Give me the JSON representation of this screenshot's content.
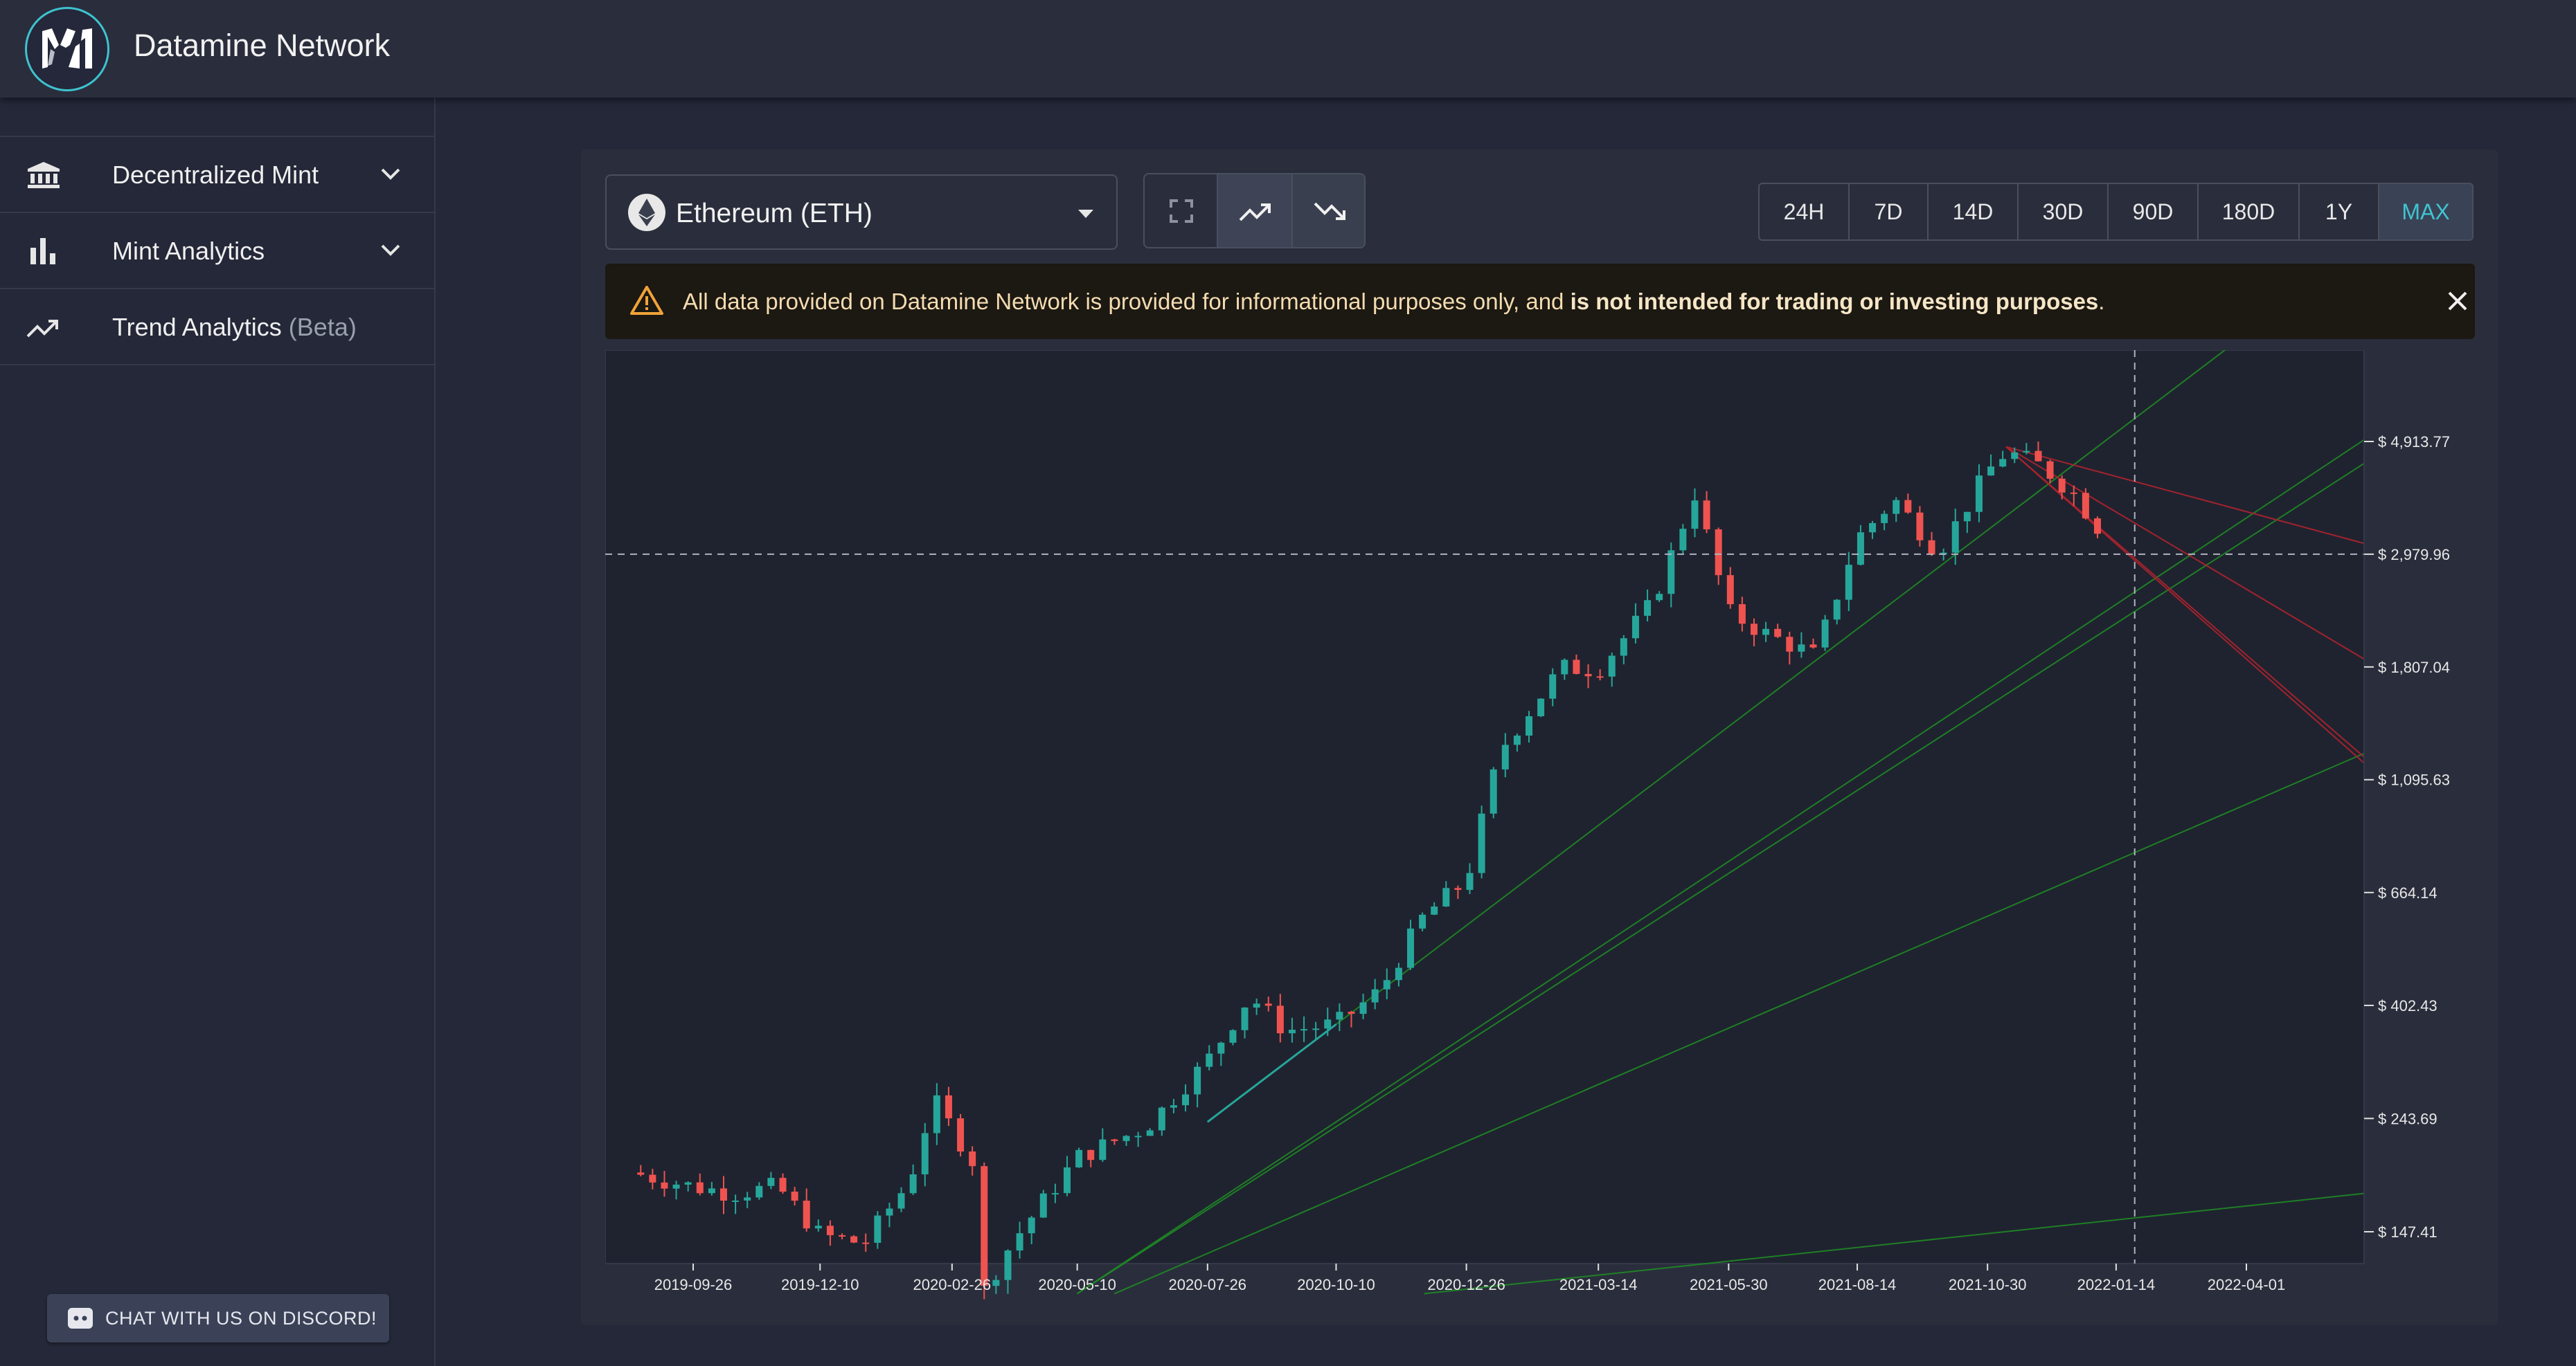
{
  "app": {
    "title": "Datamine Network"
  },
  "sidebar": {
    "items": [
      {
        "label": "Decentralized Mint",
        "icon": "bank-icon",
        "expandable": true
      },
      {
        "label": "Mint Analytics",
        "icon": "bar-chart-icon",
        "expandable": true
      },
      {
        "label": "Trend Analytics",
        "suffix": "(Beta)",
        "icon": "trending-up-icon",
        "expandable": false
      }
    ],
    "discord_label": "CHAT WITH US ON DISCORD!"
  },
  "toolbar": {
    "asset_select": {
      "value": "Ethereum (ETH)",
      "icon": "ethereum-icon"
    },
    "view_buttons": [
      {
        "icon": "fullscreen-icon",
        "active": false
      },
      {
        "icon": "trending-up-icon",
        "active": true
      },
      {
        "icon": "trending-down-icon",
        "active": false
      }
    ],
    "ranges": [
      "24H",
      "7D",
      "14D",
      "30D",
      "90D",
      "180D",
      "1Y",
      "MAX"
    ],
    "active_range": "MAX"
  },
  "alert": {
    "prefix": "All data provided on Datamine Network is provided for informational purposes only, and ",
    "bold": "is not intended for trading or investing purposes",
    "suffix": "."
  },
  "colors": {
    "accent": "#40c4d0",
    "up": "#26a69a",
    "down": "#ef5350",
    "support": "#1e8a24",
    "resistance": "#b0232e"
  },
  "chart_data": {
    "type": "candlestick",
    "scale": "log",
    "x_ticks": [
      "2019-09-26",
      "2019-12-10",
      "2020-02-26",
      "2020-05-10",
      "2020-07-26",
      "2020-10-10",
      "2020-12-26",
      "2021-03-14",
      "2021-05-30",
      "2021-08-14",
      "2021-10-30",
      "2022-01-14",
      "2022-04-01"
    ],
    "y_ticks": [
      "$ 4,913.77",
      "$ 2,979.96",
      "$ 1,807.04",
      "$ 1,095.63",
      "$ 664.14",
      "$ 402.43",
      "$ 243.69",
      "$ 147.41"
    ],
    "crosshair_price": "$ 2,979.96",
    "series": [
      {
        "points": [
          [
            "2019-08-26",
            190
          ],
          [
            "2019-09-26",
            180
          ],
          [
            "2019-10-20",
            175
          ],
          [
            "2019-11-15",
            180
          ],
          [
            "2019-12-10",
            145
          ],
          [
            "2020-01-05",
            140
          ],
          [
            "2020-02-01",
            185
          ],
          [
            "2020-02-15",
            265
          ],
          [
            "2020-03-10",
            200
          ],
          [
            "2020-03-15",
            112
          ],
          [
            "2020-04-01",
            140
          ],
          [
            "2020-05-10",
            205
          ],
          [
            "2020-06-20",
            235
          ],
          [
            "2020-07-26",
            315
          ],
          [
            "2020-08-20",
            420
          ],
          [
            "2020-09-10",
            360
          ],
          [
            "2020-10-10",
            370
          ],
          [
            "2020-11-05",
            430
          ],
          [
            "2020-12-01",
            600
          ],
          [
            "2020-12-26",
            700
          ],
          [
            "2021-01-15",
            1250
          ],
          [
            "2021-02-20",
            1800
          ],
          [
            "2021-03-14",
            1790
          ],
          [
            "2021-04-15",
            2400
          ],
          [
            "2021-05-10",
            3900
          ],
          [
            "2021-05-30",
            2300
          ],
          [
            "2021-06-20",
            2100
          ],
          [
            "2021-07-20",
            1900
          ],
          [
            "2021-08-14",
            3200
          ],
          [
            "2021-09-05",
            3800
          ],
          [
            "2021-10-01",
            3000
          ],
          [
            "2021-10-30",
            4300
          ],
          [
            "2021-11-10",
            4700
          ],
          [
            "2021-12-01",
            4400
          ],
          [
            "2021-12-20",
            3900
          ],
          [
            "2022-01-05",
            3300
          ]
        ]
      }
    ]
  }
}
